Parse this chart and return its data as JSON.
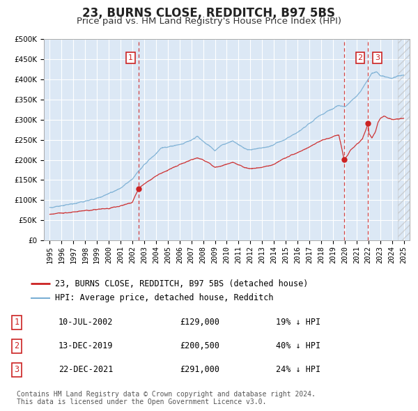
{
  "title": "23, BURNS CLOSE, REDDITCH, B97 5BS",
  "subtitle": "Price paid vs. HM Land Registry's House Price Index (HPI)",
  "ylim": [
    0,
    500000
  ],
  "yticks": [
    0,
    50000,
    100000,
    150000,
    200000,
    250000,
    300000,
    350000,
    400000,
    450000,
    500000
  ],
  "xlim_start": 1994.5,
  "xlim_end": 2025.5,
  "xticks": [
    1995,
    1996,
    1997,
    1998,
    1999,
    2000,
    2001,
    2002,
    2003,
    2004,
    2005,
    2006,
    2007,
    2008,
    2009,
    2010,
    2011,
    2012,
    2013,
    2014,
    2015,
    2016,
    2017,
    2018,
    2019,
    2020,
    2021,
    2022,
    2023,
    2024,
    2025
  ],
  "background_color": "#dce8f5",
  "grid_color": "#ffffff",
  "red_line_color": "#cc2222",
  "blue_line_color": "#7aafd4",
  "marker_color": "#cc2222",
  "vline_color": "#cc2222",
  "annotation_box_color": "#cc2222",
  "sale_points": [
    {
      "label": "1",
      "date_num": 2002.53,
      "value": 129000
    },
    {
      "label": "2",
      "date_num": 2019.95,
      "value": 200500
    },
    {
      "label": "3",
      "date_num": 2021.98,
      "value": 291000
    }
  ],
  "box_positions": [
    {
      "label": "1",
      "x": 2001.85
    },
    {
      "label": "2",
      "x": 2021.3
    },
    {
      "label": "3",
      "x": 2022.75
    }
  ],
  "legend_entries": [
    {
      "label": "23, BURNS CLOSE, REDDITCH, B97 5BS (detached house)",
      "color": "#cc2222"
    },
    {
      "label": "HPI: Average price, detached house, Redditch",
      "color": "#7aafd4"
    }
  ],
  "table_rows": [
    {
      "num": "1",
      "date": "10-JUL-2002",
      "price": "£129,000",
      "hpi": "19% ↓ HPI"
    },
    {
      "num": "2",
      "date": "13-DEC-2019",
      "price": "£200,500",
      "hpi": "40% ↓ HPI"
    },
    {
      "num": "3",
      "date": "22-DEC-2021",
      "price": "£291,000",
      "hpi": "24% ↓ HPI"
    }
  ],
  "footer_line1": "Contains HM Land Registry data © Crown copyright and database right 2024.",
  "footer_line2": "This data is licensed under the Open Government Licence v3.0.",
  "title_fontsize": 12,
  "subtitle_fontsize": 9.5,
  "tick_fontsize": 7.5,
  "legend_fontsize": 8.5,
  "table_fontsize": 8.5,
  "footer_fontsize": 7
}
